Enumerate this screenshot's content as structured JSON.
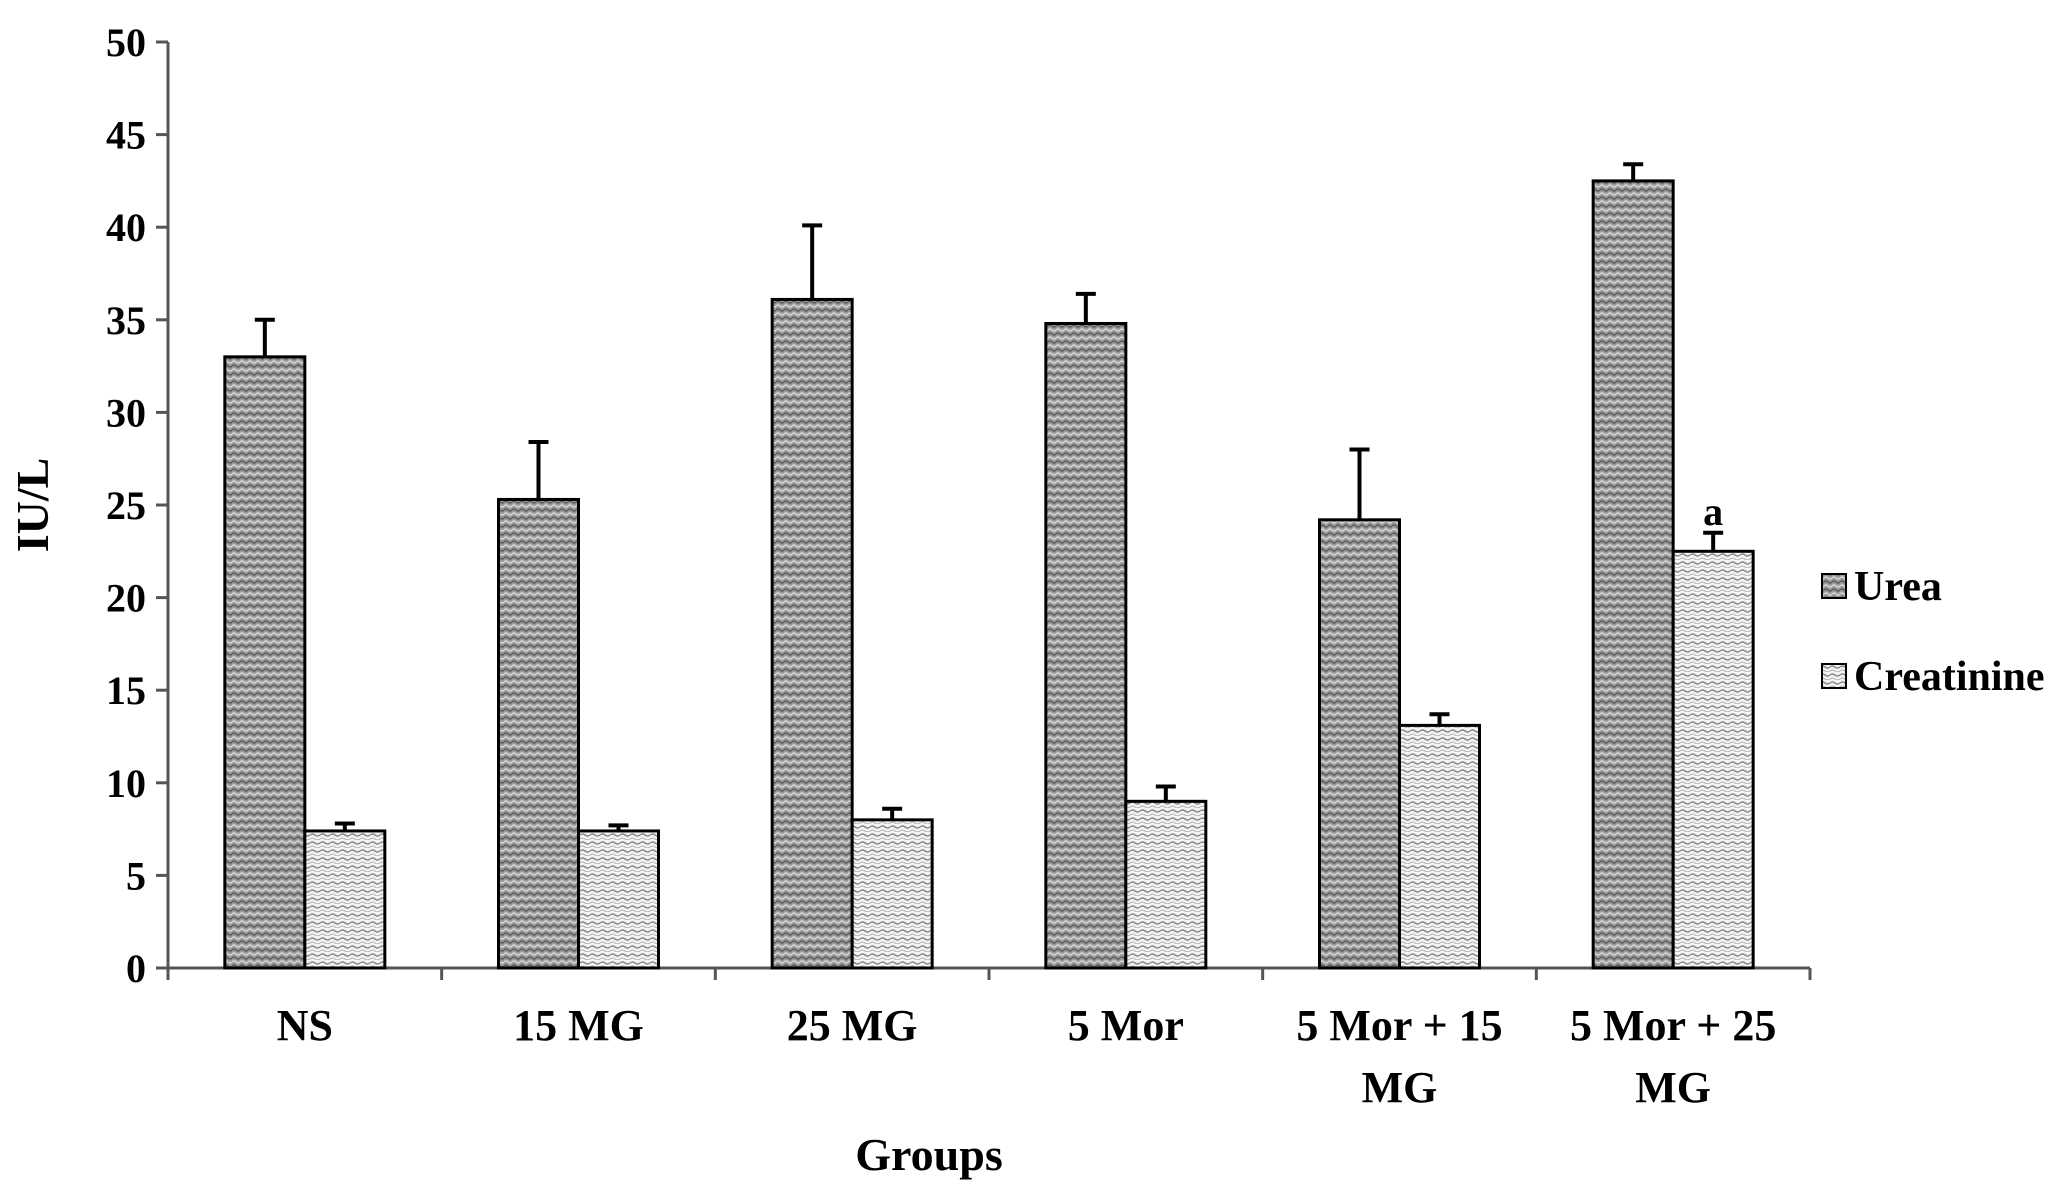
{
  "chart_data": {
    "type": "bar",
    "title": "",
    "xlabel": "Groups",
    "ylabel": "IU/L",
    "ylim": [
      0,
      50
    ],
    "yticks": [
      0,
      5,
      10,
      15,
      20,
      25,
      30,
      35,
      40,
      45,
      50
    ],
    "grid": false,
    "legend_position": "right",
    "categories": [
      [
        "NS"
      ],
      [
        "15 MG"
      ],
      [
        "25 MG"
      ],
      [
        "5 Mor"
      ],
      [
        "5 Mor + 15",
        "MG"
      ],
      [
        "5 Mor + 25",
        "MG"
      ]
    ],
    "series": [
      {
        "name": "Urea",
        "values": [
          33.0,
          25.3,
          36.1,
          34.8,
          24.2,
          42.5
        ],
        "errors": [
          2.0,
          3.1,
          4.0,
          1.6,
          3.8,
          0.9
        ],
        "pattern": "urea-pattern"
      },
      {
        "name": "Creatinine",
        "values": [
          7.4,
          7.4,
          8.0,
          9.0,
          13.1,
          22.5
        ],
        "errors": [
          0.4,
          0.3,
          0.6,
          0.8,
          0.6,
          1.0
        ],
        "pattern": "creat-pattern"
      }
    ],
    "annotations": [
      {
        "category_index": 5,
        "series_index": 1,
        "text": "a"
      }
    ]
  }
}
